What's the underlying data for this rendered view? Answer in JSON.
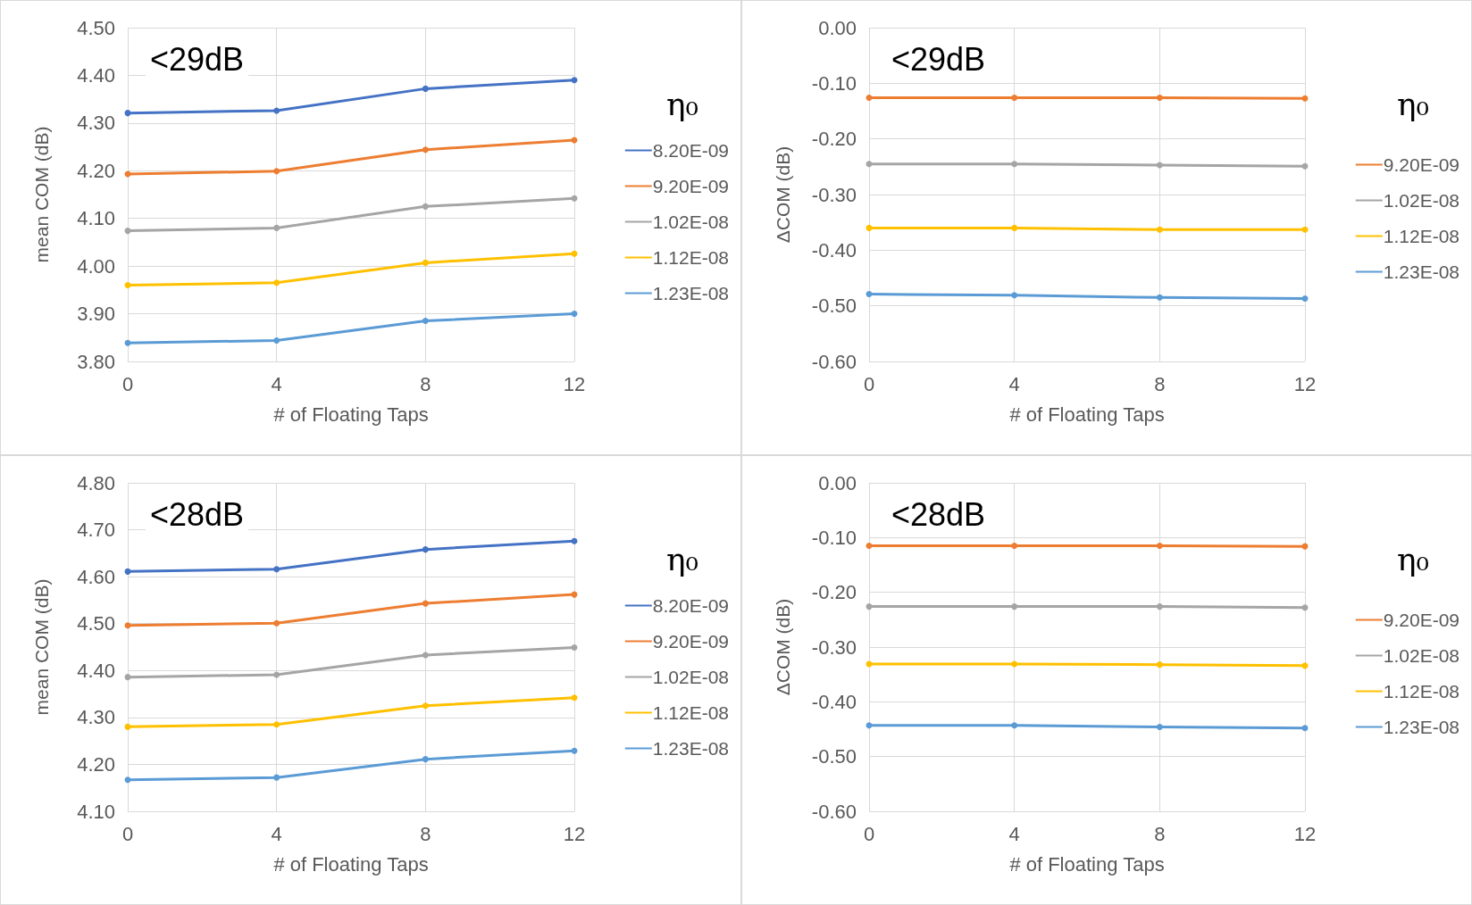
{
  "chart_data": [
    {
      "type": "line",
      "title": "<29dB",
      "xlabel": "# of Floating Taps",
      "ylabel": "mean COM (dB)",
      "legend_title": "η₀",
      "categories": [
        "0",
        "4",
        "8",
        "12"
      ],
      "ylim": [
        3.8,
        4.5
      ],
      "yticks": [
        {
          "value": 3.8,
          "label": "3.80"
        },
        {
          "value": 3.9,
          "label": "3.90"
        },
        {
          "value": 4.0,
          "label": "4.00"
        },
        {
          "value": 4.1,
          "label": "4.10"
        },
        {
          "value": 4.2,
          "label": "4.20"
        },
        {
          "value": 4.3,
          "label": "4.30"
        },
        {
          "value": 4.4,
          "label": "4.40"
        },
        {
          "value": 4.5,
          "label": "4.50"
        }
      ],
      "grid": true,
      "legend": "right",
      "marker": "circle",
      "line_style": "solid",
      "series": [
        {
          "name": "8.20E-09",
          "color": "#4472c4",
          "values": [
            4.321,
            4.326,
            4.372,
            4.39
          ]
        },
        {
          "name": "9.20E-09",
          "color": "#ed7d31",
          "values": [
            4.193,
            4.199,
            4.244,
            4.264
          ]
        },
        {
          "name": "1.02E-08",
          "color": "#a5a5a5",
          "values": [
            4.074,
            4.08,
            4.125,
            4.142
          ]
        },
        {
          "name": "1.12E-08",
          "color": "#ffc000",
          "values": [
            3.96,
            3.965,
            4.007,
            4.026
          ]
        },
        {
          "name": "1.23E-08",
          "color": "#5b9bd5",
          "values": [
            3.839,
            3.844,
            3.885,
            3.9
          ]
        }
      ]
    },
    {
      "type": "line",
      "title": "<29dB",
      "xlabel": "# of Floating Taps",
      "ylabel": "ΔCOM (dB)",
      "legend_title": "η₀",
      "categories": [
        "0",
        "4",
        "8",
        "12"
      ],
      "ylim": [
        -0.6,
        0
      ],
      "yticks": [
        {
          "value": -0.6,
          "label": "-0.60"
        },
        {
          "value": -0.5,
          "label": "-0.50"
        },
        {
          "value": -0.4,
          "label": "-0.40"
        },
        {
          "value": -0.3,
          "label": "-0.30"
        },
        {
          "value": -0.2,
          "label": "-0.20"
        },
        {
          "value": -0.1,
          "label": "-0.10"
        },
        {
          "value": 0,
          "label": "0.00"
        }
      ],
      "grid": true,
      "legend": "right",
      "marker": "circle",
      "line_style": "solid",
      "series": [
        {
          "name": "9.20E-09",
          "color": "#ed7d31",
          "values": [
            -0.126,
            -0.126,
            -0.126,
            -0.127
          ]
        },
        {
          "name": "1.02E-08",
          "color": "#a5a5a5",
          "values": [
            -0.245,
            -0.245,
            -0.247,
            -0.249
          ]
        },
        {
          "name": "1.12E-08",
          "color": "#ffc000",
          "values": [
            -0.36,
            -0.36,
            -0.363,
            -0.363
          ]
        },
        {
          "name": "1.23E-08",
          "color": "#5b9bd5",
          "values": [
            -0.479,
            -0.481,
            -0.485,
            -0.487
          ]
        }
      ]
    },
    {
      "type": "line",
      "title": "<28dB",
      "xlabel": "# of Floating Taps",
      "ylabel": "mean COM (dB)",
      "legend_title": "η₀",
      "categories": [
        "0",
        "4",
        "8",
        "12"
      ],
      "ylim": [
        4.1,
        4.8
      ],
      "yticks": [
        {
          "value": 4.1,
          "label": "4.10"
        },
        {
          "value": 4.2,
          "label": "4.20"
        },
        {
          "value": 4.3,
          "label": "4.30"
        },
        {
          "value": 4.4,
          "label": "4.40"
        },
        {
          "value": 4.5,
          "label": "4.50"
        },
        {
          "value": 4.6,
          "label": "4.60"
        },
        {
          "value": 4.7,
          "label": "4.70"
        },
        {
          "value": 4.8,
          "label": "4.80"
        }
      ],
      "grid": true,
      "legend": "right",
      "marker": "circle",
      "line_style": "solid",
      "series": [
        {
          "name": "8.20E-09",
          "color": "#4472c4",
          "values": [
            4.611,
            4.616,
            4.658,
            4.676
          ]
        },
        {
          "name": "9.20E-09",
          "color": "#ed7d31",
          "values": [
            4.496,
            4.501,
            4.543,
            4.562
          ]
        },
        {
          "name": "1.02E-08",
          "color": "#a5a5a5",
          "values": [
            4.386,
            4.391,
            4.433,
            4.449
          ]
        },
        {
          "name": "1.12E-08",
          "color": "#ffc000",
          "values": [
            4.28,
            4.285,
            4.325,
            4.342
          ]
        },
        {
          "name": "1.23E-08",
          "color": "#5b9bd5",
          "values": [
            4.167,
            4.172,
            4.211,
            4.229
          ]
        }
      ]
    },
    {
      "type": "line",
      "title": "<28dB",
      "xlabel": "# of Floating Taps",
      "ylabel": "ΔCOM (dB)",
      "legend_title": "η₀",
      "categories": [
        "0",
        "4",
        "8",
        "12"
      ],
      "ylim": [
        -0.6,
        0
      ],
      "yticks": [
        {
          "value": -0.6,
          "label": "-0.60"
        },
        {
          "value": -0.5,
          "label": "-0.50"
        },
        {
          "value": -0.4,
          "label": "-0.40"
        },
        {
          "value": -0.3,
          "label": "-0.30"
        },
        {
          "value": -0.2,
          "label": "-0.20"
        },
        {
          "value": -0.1,
          "label": "-0.10"
        },
        {
          "value": 0,
          "label": "0.00"
        }
      ],
      "grid": true,
      "legend": "right",
      "marker": "circle",
      "line_style": "solid",
      "series": [
        {
          "name": "9.20E-09",
          "color": "#ed7d31",
          "values": [
            -0.115,
            -0.115,
            -0.115,
            -0.116
          ]
        },
        {
          "name": "1.02E-08",
          "color": "#a5a5a5",
          "values": [
            -0.226,
            -0.226,
            -0.226,
            -0.228
          ]
        },
        {
          "name": "1.12E-08",
          "color": "#ffc000",
          "values": [
            -0.331,
            -0.331,
            -0.332,
            -0.334
          ]
        },
        {
          "name": "1.23E-08",
          "color": "#5b9bd5",
          "values": [
            -0.443,
            -0.443,
            -0.446,
            -0.448
          ]
        }
      ]
    }
  ]
}
